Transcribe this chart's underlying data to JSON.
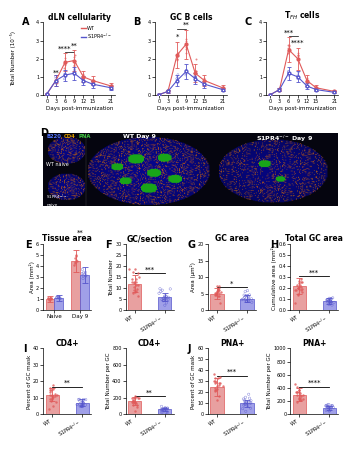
{
  "panels_ABC": {
    "x_ticks": [
      0,
      3,
      6,
      9,
      12,
      15,
      21
    ],
    "xlabel": "Days post-immunization",
    "ylabel": "Total Number (10⁻⁵)",
    "A_title": "dLN cellularity",
    "B_title": "GC B cells",
    "C_title": "Tₔₕ cells",
    "wt_mean": [
      0.05,
      0.8,
      1.8,
      1.9,
      1.0,
      0.8,
      0.5
    ],
    "s1pr4_mean": [
      0.05,
      0.8,
      1.1,
      1.2,
      0.8,
      0.6,
      0.4
    ],
    "wt_err": [
      0.02,
      0.3,
      0.5,
      0.6,
      0.3,
      0.25,
      0.15
    ],
    "s1pr4_err": [
      0.02,
      0.3,
      0.3,
      0.35,
      0.25,
      0.2,
      0.12
    ],
    "B_wt_mean": [
      0.02,
      0.2,
      2.2,
      2.8,
      1.2,
      0.8,
      0.4
    ],
    "B_s1pr4_mean": [
      0.02,
      0.2,
      0.8,
      1.3,
      0.9,
      0.6,
      0.3
    ],
    "B_wt_err": [
      0.01,
      0.1,
      0.7,
      0.8,
      0.5,
      0.3,
      0.15
    ],
    "B_s1pr4_err": [
      0.01,
      0.1,
      0.3,
      0.4,
      0.3,
      0.2,
      0.1
    ],
    "C_wt_mean": [
      0.02,
      0.3,
      2.5,
      2.0,
      0.8,
      0.4,
      0.2
    ],
    "C_s1pr4_mean": [
      0.02,
      0.3,
      1.2,
      1.0,
      0.5,
      0.3,
      0.15
    ],
    "C_wt_err": [
      0.01,
      0.1,
      0.7,
      0.6,
      0.3,
      0.15,
      0.08
    ],
    "C_s1pr4_err": [
      0.01,
      0.1,
      0.35,
      0.3,
      0.15,
      0.1,
      0.06
    ]
  },
  "wt_color": "#e05a5a",
  "s1pr4_color": "#5555cc",
  "bar_wt_color": "#e8a0a0",
  "bar_s1pr4_color": "#a0a0e8",
  "panel_E": {
    "title": "Tissue area",
    "ylabel": "Area (mm²)",
    "categories": [
      "Naive",
      "Day 9"
    ],
    "wt_vals": [
      1.0,
      4.5
    ],
    "s1pr4_vals": [
      1.1,
      3.2
    ],
    "wt_err": [
      0.3,
      1.0
    ],
    "s1pr4_err": [
      0.3,
      0.7
    ],
    "ylim": [
      0,
      6
    ],
    "sig": "**"
  },
  "panel_F": {
    "title": "GC/section",
    "ylabel": "Total Number",
    "wt_val": 12.0,
    "s1_val": 6.0,
    "ylim": [
      0,
      30
    ],
    "sig": "***"
  },
  "panel_G": {
    "title": "GC area",
    "ylabel": "Area (μm²)",
    "wt_val": 5.0,
    "s1_val": 3.5,
    "ylim": [
      0,
      20
    ],
    "sig": "*"
  },
  "panel_H": {
    "title": "Total GC area",
    "ylabel": "Cumulative area (mm²)",
    "wt_val": 0.22,
    "s1_val": 0.08,
    "ylim": [
      0,
      0.6
    ],
    "sig": "***"
  },
  "panel_I": {
    "title_left": "CD4+",
    "title_right": "CD4+",
    "ylabel_left": "Percent of GC mask",
    "ylabel_right": "Total Number per GC",
    "wt_pct": 12.0,
    "s1pr4_pct": 7.0,
    "wt_num": 160.0,
    "s1pr4_num": 60.0,
    "ylim_pct": [
      0,
      40
    ],
    "ylim_num": [
      0,
      800
    ],
    "sig_pct": "**",
    "sig_num": "**"
  },
  "panel_J": {
    "title_left": "PNA+",
    "title_right": "PNA+",
    "ylabel_left": "Percent of GC mask",
    "ylabel_right": "Total Number per GC",
    "wt_pct": 25.0,
    "s1pr4_pct": 10.0,
    "wt_num": 300.0,
    "s1pr4_num": 100.0,
    "ylim_pct": [
      0,
      60
    ],
    "ylim_num": [
      0,
      1000
    ],
    "sig_pct": "***",
    "sig_num": "****"
  }
}
